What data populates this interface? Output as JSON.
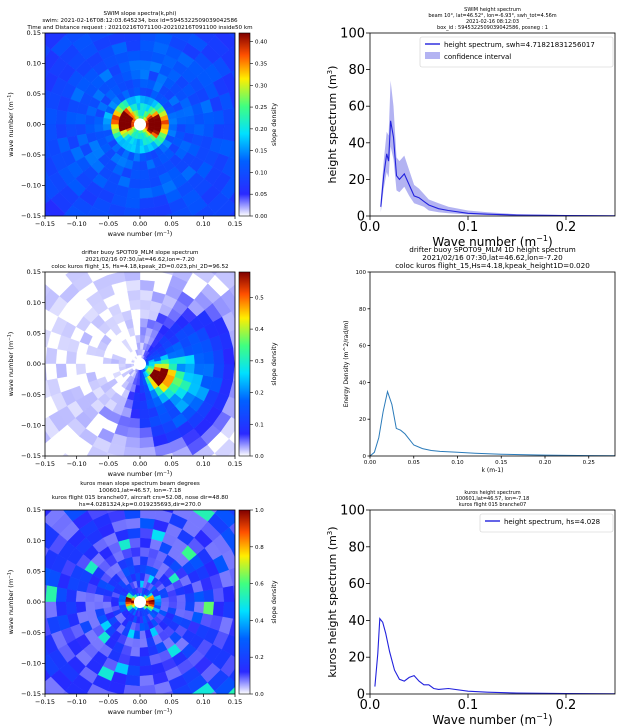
{
  "chart_data": [
    {
      "type": "heatmap",
      "panel": "swim-slope",
      "title_lines": [
        "SWIM slope spectra(k,phi)",
        "swim: 2021-02-16T08:12:03.645234, box id=5945322509039042586",
        "Time and Distance request : 20210216T071100-20210216T091100 inside50 km"
      ],
      "xlabel": "wave number (m$^{-1}$)",
      "ylabel": "wave number (m$^{-1}$)",
      "xlim": [
        -0.15,
        0.15
      ],
      "ylim": [
        -0.15,
        0.15
      ],
      "xticks": [
        "-0.15",
        "-0.10",
        "-0.05",
        "0.00",
        "0.05",
        "0.10",
        "0.15"
      ],
      "yticks": [
        "0.15",
        "0.10",
        "0.05",
        "0.00",
        "-0.05",
        "-0.10",
        "-0.15"
      ],
      "colorbar_label": "slope density",
      "colorbar_ticks": [
        "0.40",
        "0.35",
        "0.30",
        "0.25",
        "0.20",
        "0.15",
        "0.10",
        "0.05",
        "0.00"
      ],
      "vmax": 0.42,
      "hotspots": [
        {
          "kx": -0.025,
          "ky": 0.005
        },
        {
          "kx": 0.025,
          "ky": 0.0
        }
      ]
    },
    {
      "type": "line",
      "panel": "swim-height",
      "title_lines": [
        "SWIM height spectrum",
        "beam 10°, lat=46.52°, lon=-6.93°, swh_tot=4.56m",
        "2021-02-16 08:12:03",
        "box_id : 5945322509039042586, posneg : 1"
      ],
      "xlabel": "Wave number (m$^{-1}$)",
      "ylabel": "height spectrum (m$^{3}$)",
      "xlim": [
        0,
        0.25
      ],
      "ylim": [
        0,
        100
      ],
      "xticks": [
        "0.0",
        "0.1",
        "0.2"
      ],
      "yticks": [
        "0",
        "20",
        "40",
        "60",
        "80",
        "100"
      ],
      "legend": [
        "height spectrum, swh=4.71821831256017",
        "confidence interval"
      ],
      "x": [
        0.011,
        0.014,
        0.017,
        0.019,
        0.021,
        0.024,
        0.027,
        0.03,
        0.035,
        0.04,
        0.045,
        0.05,
        0.055,
        0.06,
        0.07,
        0.08,
        0.1,
        0.12,
        0.15,
        0.2,
        0.25
      ],
      "y": [
        5,
        22,
        34,
        30,
        52,
        43,
        22,
        20,
        23,
        17,
        11,
        10,
        8,
        6,
        4,
        3,
        1.5,
        1,
        0.5,
        0.2,
        0.1
      ],
      "ci_low": [
        2,
        15,
        24,
        21,
        38,
        31,
        14,
        13,
        16,
        11,
        7,
        6,
        5,
        3,
        2,
        1.5,
        0.8,
        0.5,
        0.2,
        0.1,
        0.05
      ],
      "ci_high": [
        9,
        30,
        46,
        44,
        74,
        60,
        32,
        30,
        33,
        25,
        17,
        15,
        12,
        9,
        7,
        5,
        3,
        2,
        1,
        0.5,
        0.3
      ]
    },
    {
      "type": "heatmap",
      "panel": "buoy-slope",
      "title_lines": [
        "drifter buoy SPOT09_MLM slope spectrum",
        "2021/02/16 07:30,lat=46.62,lon=-7.20",
        "coloc kuros flight_15, Hs=4.18,kpeak_2D=0.023,phi_2D=96.52"
      ],
      "xlabel": "wave number (m$^{-1}$)",
      "ylabel": "wave number (m$^{-1}$)",
      "xlim": [
        -0.15,
        0.15
      ],
      "ylim": [
        -0.15,
        0.15
      ],
      "xticks": [
        "-0.15",
        "-0.10",
        "-0.05",
        "0.00",
        "0.05",
        "0.10",
        "0.15"
      ],
      "yticks": [
        "0.15",
        "0.10",
        "0.05",
        "0.00",
        "-0.05",
        "-0.10",
        "-0.15"
      ],
      "colorbar_label": "slope density",
      "colorbar_ticks": [
        "0.5",
        "0.4",
        "0.3",
        "0.2",
        "0.1",
        "0.0"
      ],
      "vmax": 0.58,
      "hotspots": [
        {
          "kx": 0.03,
          "ky": -0.02
        }
      ]
    },
    {
      "type": "line",
      "panel": "buoy-height",
      "title_lines": [
        "drifter buoy SPOT09_MLM 1D height spectrum",
        "2021/02/16 07:30,lat=46.62,lon=-7.20",
        "coloc kuros flight_15,Hs=4.18,kpeak_height1D=0.020"
      ],
      "xlabel": "k (m-1)",
      "ylabel": "Energy Density (m^2/rad/m)",
      "xlim": [
        0,
        0.28
      ],
      "ylim": [
        0,
        100
      ],
      "xticks": [
        "0.00",
        "0.05",
        "0.10",
        "0.15",
        "0.20",
        "0.25"
      ],
      "yticks": [
        "0",
        "20",
        "40",
        "60",
        "80",
        "100"
      ],
      "x": [
        0.0,
        0.005,
        0.01,
        0.015,
        0.02,
        0.025,
        0.03,
        0.035,
        0.04,
        0.05,
        0.06,
        0.07,
        0.08,
        0.1,
        0.12,
        0.15,
        0.2,
        0.25,
        0.28
      ],
      "y": [
        0,
        2,
        10,
        24,
        35,
        28,
        15,
        14,
        12,
        6,
        4,
        3,
        2.5,
        2,
        1.5,
        1,
        0.5,
        0.2,
        0.1
      ]
    },
    {
      "type": "heatmap",
      "panel": "kuros-slope",
      "title_lines": [
        "kuros mean slope spectrum beam degrees",
        "100601,lat=46.57, lon=-7.18",
        "kuros flight 015 branche07, aircraft crs=52.08, nose dir=48.80",
        "hs=4.0281324,kp=0.019235693,dir=270.0"
      ],
      "xlabel": "wave number (m$^{-1}$)",
      "ylabel": "wave number (m$^{-1}$)",
      "xlim": [
        -0.15,
        0.15
      ],
      "ylim": [
        -0.15,
        0.15
      ],
      "xticks": [
        "-0.15",
        "-0.10",
        "-0.05",
        "0.00",
        "0.05",
        "0.10",
        "0.15"
      ],
      "yticks": [
        "0.15",
        "0.10",
        "0.05",
        "0.00",
        "-0.05",
        "-0.10",
        "-0.15"
      ],
      "colorbar_label": "slope density",
      "colorbar_ticks": [
        "1.0",
        "0.8",
        "0.6",
        "0.4",
        "0.2",
        "0.0"
      ],
      "vmax": 1.0,
      "hotspots": [
        {
          "kx": -0.015,
          "ky": 0.0
        },
        {
          "kx": 0.015,
          "ky": 0.0
        }
      ]
    },
    {
      "type": "line",
      "panel": "kuros-height",
      "title_lines": [
        "kuros height spectrum",
        "100601,lat=46.57, lon=-7.18",
        "kuros flight 015 branche07"
      ],
      "xlabel": "Wave number (m$^{-1}$)",
      "ylabel": "kuros height spectrum (m$^{3}$)",
      "xlim": [
        0,
        0.25
      ],
      "ylim": [
        0,
        100
      ],
      "xticks": [
        "0.0",
        "0.1",
        "0.2"
      ],
      "yticks": [
        "0",
        "20",
        "40",
        "60",
        "80",
        "100"
      ],
      "legend": [
        "height spectrum, hs=4.028"
      ],
      "x": [
        0.005,
        0.008,
        0.01,
        0.013,
        0.016,
        0.02,
        0.025,
        0.03,
        0.035,
        0.04,
        0.045,
        0.05,
        0.055,
        0.06,
        0.065,
        0.07,
        0.08,
        0.1,
        0.12,
        0.15,
        0.2,
        0.25
      ],
      "y": [
        4,
        22,
        41,
        39,
        33,
        23,
        13,
        8,
        7,
        9,
        10,
        7,
        5,
        5,
        3,
        2.5,
        3,
        1.5,
        1,
        0.5,
        0.2,
        0.1
      ]
    }
  ],
  "colors": {
    "line": "#2222dd",
    "ci": "#9999ee",
    "buoy_line": "#2b7bba"
  }
}
